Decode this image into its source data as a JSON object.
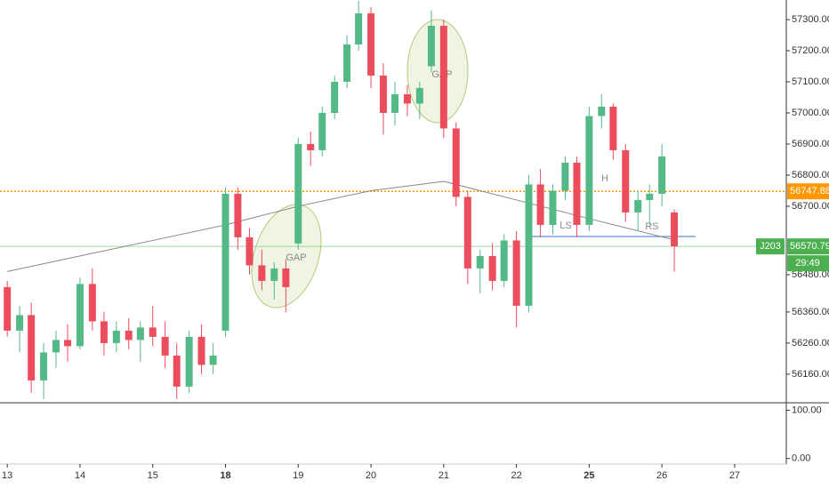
{
  "chart_data": {
    "type": "candlestick",
    "symbol": "J203",
    "countdown": "29:49",
    "annotations": [
      "GAP",
      "GAP",
      "LS",
      "H",
      "RS"
    ],
    "up_color": "#53b987",
    "down_color": "#eb4d5c",
    "x": [
      0,
      0.17,
      0.33,
      0.5,
      0.67,
      0.83,
      1,
      1.17,
      1.33,
      1.5,
      1.67,
      1.83,
      2,
      2.17,
      2.33,
      2.5,
      2.67,
      2.83,
      3,
      3.17,
      3.33,
      3.5,
      3.67,
      3.83,
      4,
      4.17,
      4.33,
      4.5,
      4.67,
      4.83,
      5,
      5.17,
      5.33,
      5.5,
      5.67,
      5.83,
      6,
      6.17,
      6.33,
      6.5,
      6.67,
      6.83,
      7,
      7.17,
      7.33,
      7.5,
      7.67,
      7.83,
      8,
      8.17,
      8.33,
      8.5,
      8.67,
      8.83,
      9,
      9.17
    ],
    "open": [
      56440,
      56300,
      56350,
      56140,
      56230,
      56270,
      56250,
      56450,
      56330,
      56260,
      56300,
      56270,
      56310,
      56280,
      56220,
      56120,
      56280,
      56190,
      56300,
      56740,
      56600,
      56510,
      56460,
      56500,
      56580,
      56900,
      56880,
      57000,
      57100,
      57220,
      57320,
      57120,
      57000,
      57060,
      57030,
      57150,
      57280,
      56950,
      56730,
      56500,
      56540,
      56460,
      56590,
      56380,
      56770,
      56640,
      56750,
      56840,
      56640,
      56990,
      57020,
      56880,
      56680,
      56720,
      56740,
      56680
    ],
    "high": [
      56460,
      56380,
      56390,
      56260,
      56300,
      56320,
      56470,
      56500,
      56360,
      56330,
      56340,
      56330,
      56380,
      56330,
      56260,
      56300,
      56320,
      56260,
      56760,
      56760,
      56630,
      56560,
      56520,
      56530,
      56920,
      56940,
      57020,
      57120,
      57250,
      57360,
      57340,
      57160,
      57100,
      57090,
      57100,
      57330,
      57300,
      56970,
      56750,
      56560,
      56580,
      56610,
      56620,
      56800,
      56820,
      56770,
      56860,
      56860,
      57020,
      57060,
      57030,
      56900,
      56750,
      56770,
      56900,
      56690
    ],
    "low": [
      56280,
      56230,
      56100,
      56080,
      56180,
      56200,
      56240,
      56300,
      56220,
      56230,
      56240,
      56200,
      56250,
      56180,
      56080,
      56100,
      56160,
      56160,
      56280,
      56560,
      56480,
      56430,
      56400,
      56360,
      56560,
      56830,
      56860,
      56980,
      57080,
      57200,
      57080,
      56930,
      56960,
      56990,
      56980,
      57130,
      56920,
      56700,
      56450,
      56420,
      56430,
      56440,
      56310,
      56360,
      56600,
      56610,
      56720,
      56600,
      56620,
      56950,
      56850,
      56650,
      56620,
      56640,
      56700,
      56490
    ],
    "close": [
      56300,
      56350,
      56140,
      56230,
      56270,
      56250,
      56450,
      56330,
      56260,
      56300,
      56270,
      56310,
      56280,
      56220,
      56120,
      56280,
      56190,
      56220,
      56740,
      56600,
      56510,
      56460,
      56500,
      56440,
      56900,
      56880,
      57000,
      57100,
      57220,
      57320,
      57120,
      57000,
      57060,
      57030,
      57080,
      57280,
      56950,
      56730,
      56500,
      56540,
      56460,
      56590,
      56380,
      56770,
      56640,
      56750,
      56840,
      56640,
      56990,
      57020,
      56880,
      56680,
      56720,
      56740,
      56860,
      56570.79
    ],
    "moving_average": {
      "color": "#888888",
      "x": [
        0,
        1,
        2,
        3,
        4,
        5,
        6,
        7,
        8,
        9.2
      ],
      "values": [
        56490,
        56540,
        56590,
        56640,
        56700,
        56750,
        56780,
        56720,
        56660,
        56590
      ]
    },
    "price_lines": [
      {
        "value": 56747.88,
        "color": "#ff9800"
      },
      {
        "value": 56570.79,
        "color": "#4caf50"
      }
    ],
    "xlim": [
      -0.1,
      10.71
    ],
    "xticks": [
      {
        "value": 0,
        "label": "13"
      },
      {
        "value": 1,
        "label": "14"
      },
      {
        "value": 2,
        "label": "15"
      },
      {
        "value": 3,
        "label": "18"
      },
      {
        "value": 4,
        "label": "19"
      },
      {
        "value": 5,
        "label": "20"
      },
      {
        "value": 6,
        "label": "21"
      },
      {
        "value": 7,
        "label": "22"
      },
      {
        "value": 8,
        "label": "25"
      },
      {
        "value": 9,
        "label": "26"
      },
      {
        "value": 10,
        "label": "27"
      }
    ],
    "ylim": [
      56071,
      57363
    ],
    "yticks": [
      {
        "value": 57300,
        "label": "57300.00"
      },
      {
        "value": 57200,
        "label": "57200.00"
      },
      {
        "value": 57100,
        "label": "57100.00"
      },
      {
        "value": 57000,
        "label": "57000.00"
      },
      {
        "value": 56900,
        "label": "56900.00"
      },
      {
        "value": 56800,
        "label": "56800.00"
      },
      {
        "value": 56700,
        "label": "56700.00"
      },
      {
        "value": 56480,
        "label": "56480.00"
      },
      {
        "value": 56360,
        "label": "56360.00"
      },
      {
        "value": 56260,
        "label": "56260.00"
      },
      {
        "value": 56160,
        "label": "56160.00"
      }
    ],
    "lower_pane": {
      "ylim": [
        -8,
        110
      ],
      "yticks": [
        {
          "value": 100,
          "label": "100.00"
        },
        {
          "value": 0,
          "label": "0.00"
        }
      ]
    }
  }
}
